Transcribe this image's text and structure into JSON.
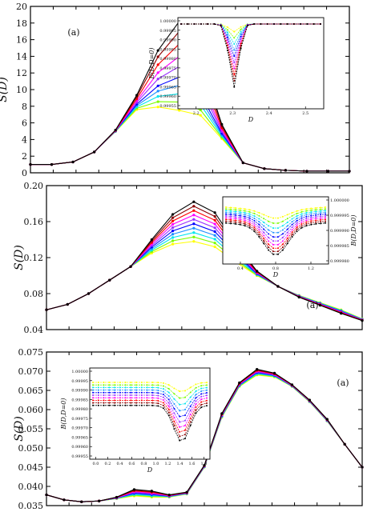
{
  "chart_data": [
    {
      "type": "line",
      "panel_label": "(a)",
      "ylabel": "S(D)",
      "ylim": [
        0,
        20
      ],
      "yticks": [
        "0",
        "2",
        "4",
        "6",
        "8",
        "10",
        "12",
        "14",
        "16",
        "18",
        "20"
      ],
      "series_colors": [
        "#ffff00",
        "#7cfc00",
        "#00e5ee",
        "#1e90ff",
        "#0000ff",
        "#9b30ff",
        "#ff00ff",
        "#ff0000",
        "#8b0000",
        "#000000"
      ],
      "series": [
        {
          "peak": 7.5
        },
        {
          "peak": 8.5
        },
        {
          "peak": 9.5
        },
        {
          "peak": 10.5
        },
        {
          "peak": 11.5
        },
        {
          "peak": 12.8
        },
        {
          "peak": 14.0
        },
        {
          "peak": 15.5
        },
        {
          "peak": 17.0
        },
        {
          "peak": 18.2
        }
      ],
      "x": [
        0.0,
        0.05,
        0.1,
        0.15,
        0.18,
        0.2,
        0.21,
        0.22,
        0.23,
        0.25,
        0.3,
        0.4,
        0.5,
        0.6,
        0.7,
        0.8
      ],
      "base_shape": [
        1.0,
        1.0,
        1.3,
        2.5,
        5.0,
        8.0,
        9.5,
        10.0,
        8.5,
        4.5,
        1.2,
        0.5,
        0.3,
        0.2,
        0.2,
        0.2
      ],
      "inset": {
        "ylabel": "B(D,D=0)",
        "xlabel": "D",
        "xticks": [
          "2.2",
          "2.3",
          "2.4",
          "2.5"
        ],
        "yticks": [
          "1.00000",
          "0.99995",
          "0.99990",
          "0.99985",
          "0.99980",
          "0.99975",
          "0.99970",
          "0.99965",
          "0.99960",
          "0.99955"
        ],
        "dip_depths": [
          0.1,
          0.18,
          0.26,
          0.34,
          0.42,
          0.5,
          0.58,
          0.66,
          0.74,
          0.82
        ]
      }
    },
    {
      "type": "line",
      "panel_label": "(a)",
      "ylabel": "S(D)",
      "ylim": [
        0.04,
        0.2
      ],
      "yticks": [
        "0.04",
        "0.08",
        "0.12",
        "0.16",
        "0.20"
      ],
      "x": [
        0,
        1,
        2,
        3,
        4,
        5,
        6,
        7,
        8,
        9,
        10,
        11,
        12,
        13,
        14,
        15
      ],
      "base_values": [
        0.062,
        0.068,
        0.08,
        0.095,
        0.11,
        0.125,
        0.135,
        0.138,
        0.132,
        0.115,
        0.1,
        0.088,
        0.078,
        0.07,
        0.062,
        0.052
      ],
      "peak_values": [
        0.062,
        0.068,
        0.08,
        0.095,
        0.11,
        0.14,
        0.168,
        0.182,
        0.17,
        0.135,
        0.105,
        0.088,
        0.076,
        0.067,
        0.058,
        0.05
      ],
      "inset": {
        "ylabel": "B(D,D=0)",
        "xlabel": "D",
        "xticks": [
          "0.4",
          "0.8",
          "1.2"
        ],
        "yticks": [
          "1.000000",
          "0.999995",
          "0.999990",
          "0.999985",
          "0.999980"
        ],
        "dip_depths": [
          0.15,
          0.23,
          0.31,
          0.39,
          0.47,
          0.55,
          0.63,
          0.71,
          0.79,
          0.87
        ]
      }
    },
    {
      "type": "line",
      "panel_label": "(a)",
      "ylabel": "S(D)",
      "ylim": [
        0.035,
        0.075
      ],
      "yticks": [
        "0.035",
        "0.040",
        "0.045",
        "0.050",
        "0.055",
        "0.060",
        "0.065",
        "0.070",
        "0.075"
      ],
      "x": [
        0,
        1,
        2,
        3,
        4,
        5,
        6,
        7,
        8,
        9,
        10,
        11,
        12,
        13,
        14,
        15,
        16,
        17,
        18
      ],
      "base_values": [
        0.0378,
        0.0365,
        0.036,
        0.0362,
        0.0368,
        0.0375,
        0.0372,
        0.0372,
        0.038,
        0.045,
        0.058,
        0.066,
        0.069,
        0.0685,
        0.066,
        0.062,
        0.057,
        0.051,
        0.045
      ],
      "peak_values": [
        0.0378,
        0.0365,
        0.036,
        0.0362,
        0.0372,
        0.0392,
        0.0388,
        0.0378,
        0.0385,
        0.0455,
        0.059,
        0.067,
        0.0705,
        0.0695,
        0.0665,
        0.0625,
        0.0575,
        0.051,
        0.045
      ],
      "inset": {
        "ylabel": "B(D,D=0)",
        "xlabel": "D",
        "xticks": [
          "0.0",
          "0.2",
          "0.4",
          "0.6",
          "0.8",
          "1.0",
          "1.2",
          "1.4",
          "1.6",
          "1.8"
        ],
        "yticks": [
          "1.00000",
          "0.99995",
          "0.99990",
          "0.99985",
          "0.99980",
          "0.99975",
          "0.99970",
          "0.99965",
          "0.99960",
          "0.99955"
        ],
        "dip_depths": [
          0.15,
          0.23,
          0.31,
          0.39,
          0.47,
          0.55,
          0.63,
          0.71,
          0.79,
          0.87
        ]
      }
    }
  ]
}
